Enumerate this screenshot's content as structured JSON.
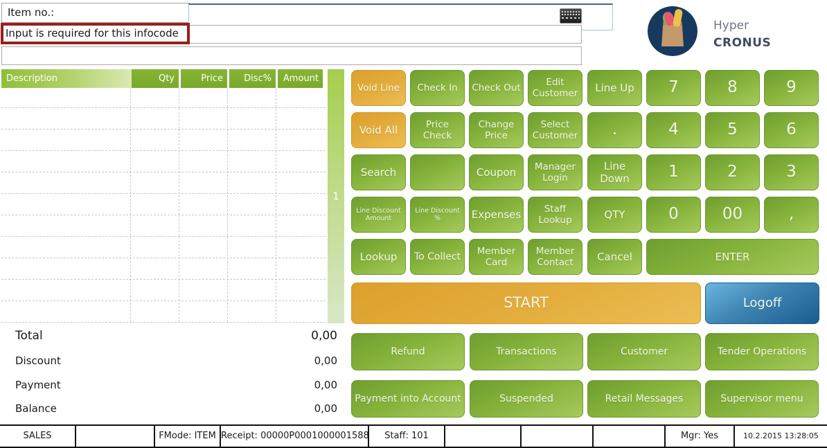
{
  "header": {
    "item_label": "Item no.:",
    "item_input_value": "",
    "error_message": "Input is required for this infocode"
  },
  "brand": {
    "line1": "Hyper",
    "line2": "CRONUS",
    "logo_icon": "grocery-bag-icon"
  },
  "receipt_grid": {
    "columns": [
      "Description",
      "Qty",
      "Price",
      "Disc%",
      "Amount"
    ],
    "rows": [],
    "page_indicator": "1"
  },
  "totals": {
    "rows": [
      {
        "label": "Total",
        "value": "0,00"
      },
      {
        "label": "Discount",
        "value": "0,00"
      },
      {
        "label": "Payment",
        "value": "0,00"
      },
      {
        "label": "Balance",
        "value": "0,00"
      }
    ]
  },
  "keypad": {
    "buttons": [
      {
        "name": "void-line-button",
        "label": "Void Line",
        "row": 0,
        "col": 0,
        "variant": "orange"
      },
      {
        "name": "check-in-button",
        "label": "Check In",
        "row": 0,
        "col": 1,
        "variant": "green"
      },
      {
        "name": "check-out-button",
        "label": "Check Out",
        "row": 0,
        "col": 2,
        "variant": "green"
      },
      {
        "name": "edit-customer-button",
        "label": "Edit Customer",
        "row": 0,
        "col": 3,
        "variant": "green"
      },
      {
        "name": "line-up-button",
        "label": "Line Up",
        "row": 0,
        "col": 4,
        "variant": "green",
        "fontsize": 15
      },
      {
        "name": "digit-7-button",
        "label": "7",
        "row": 0,
        "col": 5,
        "variant": "digit"
      },
      {
        "name": "digit-8-button",
        "label": "8",
        "row": 0,
        "col": 6,
        "variant": "digit"
      },
      {
        "name": "digit-9-button",
        "label": "9",
        "row": 0,
        "col": 7,
        "variant": "digit"
      },
      {
        "name": "void-all-button",
        "label": "Void All",
        "row": 1,
        "col": 0,
        "variant": "orange",
        "fontsize": 15
      },
      {
        "name": "price-check-button",
        "label": "Price Check",
        "row": 1,
        "col": 1,
        "variant": "green"
      },
      {
        "name": "change-price-button",
        "label": "Change Price",
        "row": 1,
        "col": 2,
        "variant": "green"
      },
      {
        "name": "select-customer-button",
        "label": "Select Customer",
        "row": 1,
        "col": 3,
        "variant": "green"
      },
      {
        "name": "dot-button",
        "label": ".",
        "row": 1,
        "col": 4,
        "variant": "digit"
      },
      {
        "name": "digit-4-button",
        "label": "4",
        "row": 1,
        "col": 5,
        "variant": "digit"
      },
      {
        "name": "digit-5-button",
        "label": "5",
        "row": 1,
        "col": 6,
        "variant": "digit"
      },
      {
        "name": "digit-6-button",
        "label": "6",
        "row": 1,
        "col": 7,
        "variant": "digit"
      },
      {
        "name": "search-button",
        "label": "Search",
        "row": 2,
        "col": 0,
        "variant": "green",
        "fontsize": 15
      },
      {
        "name": "blank-button",
        "label": "",
        "row": 2,
        "col": 1,
        "variant": "green",
        "interactable": false
      },
      {
        "name": "coupon-button",
        "label": "Coupon",
        "row": 2,
        "col": 2,
        "variant": "green",
        "fontsize": 15
      },
      {
        "name": "manager-login-button",
        "label": "Manager Login",
        "row": 2,
        "col": 3,
        "variant": "green"
      },
      {
        "name": "line-down-button",
        "label": "Line Down",
        "row": 2,
        "col": 4,
        "variant": "green",
        "fontsize": 15
      },
      {
        "name": "digit-1-button",
        "label": "1",
        "row": 2,
        "col": 5,
        "variant": "digit"
      },
      {
        "name": "digit-2-button",
        "label": "2",
        "row": 2,
        "col": 6,
        "variant": "digit"
      },
      {
        "name": "digit-3-button",
        "label": "3",
        "row": 2,
        "col": 7,
        "variant": "digit"
      },
      {
        "name": "line-discount-amount-button",
        "label": "Line Discount Amount",
        "row": 3,
        "col": 0,
        "variant": "small"
      },
      {
        "name": "line-discount-percent-button",
        "label": "Line Discount %",
        "row": 3,
        "col": 1,
        "variant": "small"
      },
      {
        "name": "expenses-button",
        "label": "Expenses",
        "row": 3,
        "col": 2,
        "variant": "green",
        "fontsize": 15
      },
      {
        "name": "staff-lookup-button",
        "label": "Staff Lookup",
        "row": 3,
        "col": 3,
        "variant": "green"
      },
      {
        "name": "qty-button",
        "label": "QTY",
        "row": 3,
        "col": 4,
        "variant": "green",
        "fontsize": 15
      },
      {
        "name": "digit-0-button",
        "label": "0",
        "row": 3,
        "col": 5,
        "variant": "digit"
      },
      {
        "name": "digit-00-button",
        "label": "00",
        "row": 3,
        "col": 6,
        "variant": "digit"
      },
      {
        "name": "comma-button",
        "label": ",",
        "row": 3,
        "col": 7,
        "variant": "digit"
      },
      {
        "name": "lookup-button",
        "label": "Lookup",
        "row": 4,
        "col": 0,
        "variant": "green",
        "fontsize": 15
      },
      {
        "name": "to-collect-button",
        "label": "To Collect",
        "row": 4,
        "col": 1,
        "variant": "green",
        "fontsize": 14
      },
      {
        "name": "member-card-button",
        "label": "Member Card",
        "row": 4,
        "col": 2,
        "variant": "green"
      },
      {
        "name": "member-contact-button",
        "label": "Member Contact",
        "row": 4,
        "col": 3,
        "variant": "green"
      },
      {
        "name": "cancel-button",
        "label": "Cancel",
        "row": 4,
        "col": 4,
        "variant": "green",
        "fontsize": 15
      },
      {
        "name": "enter-button",
        "label": "ENTER",
        "row": 4,
        "col": 5,
        "colspan": 3,
        "variant": "green",
        "fontsize": 15
      }
    ]
  },
  "start_button": {
    "label": "START"
  },
  "logoff_button": {
    "label": "Logoff"
  },
  "menu": {
    "buttons": [
      {
        "name": "refund-button",
        "label": "Refund",
        "row": 0,
        "col": 0
      },
      {
        "name": "transactions-button",
        "label": "Transactions",
        "row": 0,
        "col": 1
      },
      {
        "name": "customer-button",
        "label": "Customer",
        "row": 0,
        "col": 2
      },
      {
        "name": "tender-operations-button",
        "label": "Tender Operations",
        "row": 0,
        "col": 3
      },
      {
        "name": "payment-into-account-button",
        "label": "Payment into Account",
        "row": 1,
        "col": 0
      },
      {
        "name": "suspended-button",
        "label": "Suspended",
        "row": 1,
        "col": 1
      },
      {
        "name": "retail-messages-button",
        "label": "Retail Messages",
        "row": 1,
        "col": 2
      },
      {
        "name": "supervisor-menu-button",
        "label": "Supervisor menu",
        "row": 1,
        "col": 3
      }
    ]
  },
  "status_bar": {
    "cells": [
      {
        "name": "status-sales",
        "text": "SALES"
      },
      {
        "name": "status-empty-1",
        "text": ""
      },
      {
        "name": "status-fmode",
        "text": "FMode: ITEM"
      },
      {
        "name": "status-receipt",
        "text": "Receipt: 00000P0001000001588"
      },
      {
        "name": "status-staff",
        "text": "Staff: 101"
      },
      {
        "name": "status-empty-2",
        "text": ""
      },
      {
        "name": "status-empty-3",
        "text": ""
      },
      {
        "name": "status-empty-4",
        "text": ""
      },
      {
        "name": "status-mgr",
        "text": "Mgr: Yes"
      },
      {
        "name": "status-datetime",
        "text": "10.2.2015 13:28:05"
      }
    ]
  },
  "colors": {
    "button_green": "#85b23a",
    "button_orange": "#e2a532",
    "button_blue": "#2e6f9e",
    "header_green": "#7fae2d",
    "error_border": "#9b1d1d",
    "logo_navy": "#17395e",
    "input_border_blue": "#39698c"
  }
}
